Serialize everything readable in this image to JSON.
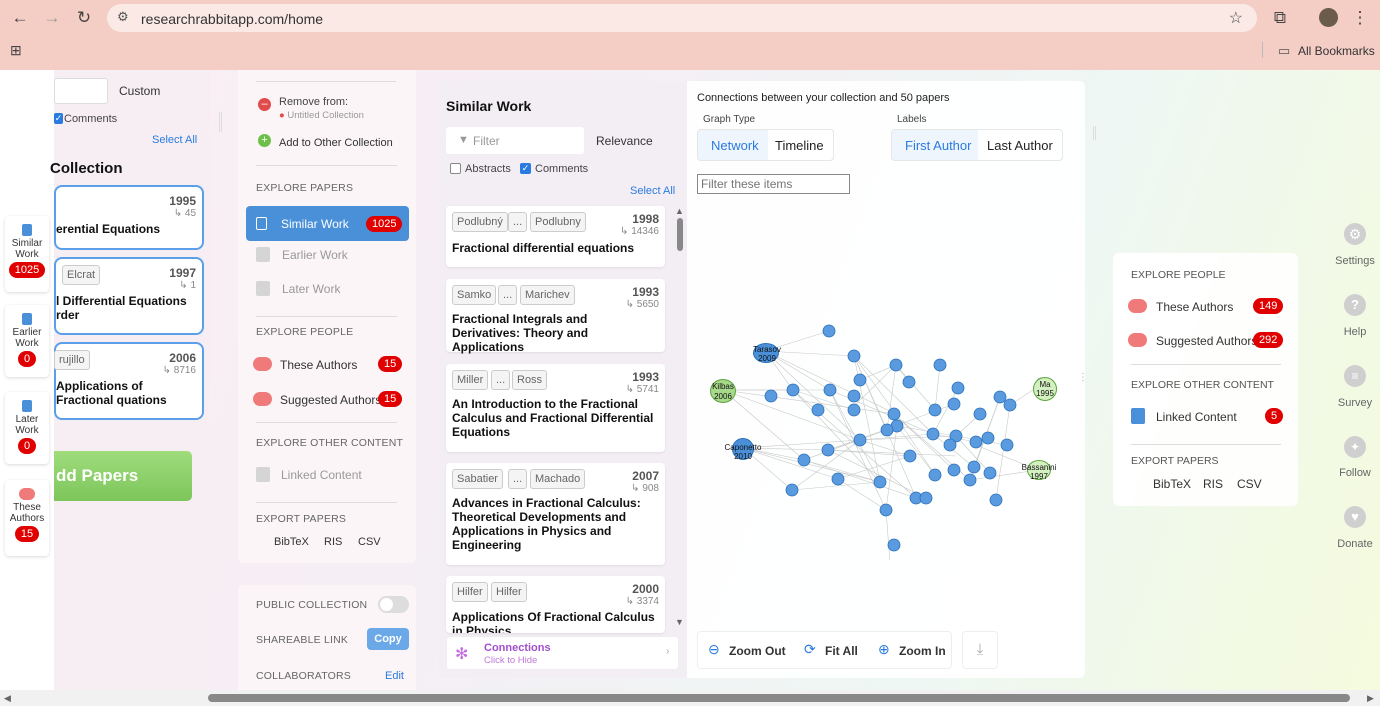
{
  "browser": {
    "url": "researchrabbitapp.com/home",
    "bookmarks_label": "All Bookmarks"
  },
  "left_panel": {
    "custom_label": "Custom",
    "comments_label": "Comments",
    "select_all": "Select All",
    "collection_title": "Collection",
    "papers": [
      {
        "year": "1995",
        "cites": "↳ 45",
        "title": "erential Equations"
      },
      {
        "year": "1997",
        "cites": "↳ 1",
        "author": "Elcrat",
        "title": "l Differential Equations rder"
      },
      {
        "year": "2006",
        "cites": "↳ 8716",
        "author": "rujillo",
        "title": "Applications of Fractional quations"
      }
    ],
    "add_papers": "dd Papers"
  },
  "side_cards": [
    {
      "label": "Similar Work",
      "count": "1025"
    },
    {
      "label": "Earlier Work",
      "count": "0"
    },
    {
      "label": "Later Work",
      "count": "0"
    },
    {
      "label": "These Authors",
      "count": "15"
    }
  ],
  "nav_panel": {
    "remove_from": "Remove from:",
    "untitled_collection": "Untitled Collection",
    "add_to_other": "Add to Other Collection",
    "explore_papers": "EXPLORE PAPERS",
    "similar_work": "Similar Work",
    "similar_count": "1025",
    "earlier_work": "Earlier Work",
    "later_work": "Later Work",
    "explore_people": "EXPLORE PEOPLE",
    "these_authors": "These Authors",
    "these_authors_count": "15",
    "suggested_authors": "Suggested Authors",
    "suggested_count": "15",
    "explore_other": "EXPLORE OTHER CONTENT",
    "linked_content": "Linked Content",
    "export_papers": "EXPORT PAPERS",
    "bibtex": "BibTeX",
    "ris": "RIS",
    "csv": "CSV",
    "public_collection": "PUBLIC COLLECTION",
    "shareable_link": "SHAREABLE LINK",
    "copy": "Copy",
    "collaborators": "COLLABORATORS",
    "edit": "Edit"
  },
  "similar": {
    "title": "Similar Work",
    "filter_placeholder": "Filter",
    "sort": "Relevance",
    "abstracts": "Abstracts",
    "comments": "Comments",
    "select_all": "Select All",
    "papers": [
      {
        "a1": "Podlubný",
        "a2": "Podlubny",
        "year": "1998",
        "cites": "↳ 14346",
        "title": "Fractional differential equations"
      },
      {
        "a1": "Samko",
        "a2": "Marichev",
        "year": "1993",
        "cites": "↳ 5650",
        "title": "Fractional Integrals and Derivatives: Theory and Applications"
      },
      {
        "a1": "Miller",
        "a2": "Ross",
        "year": "1993",
        "cites": "↳ 5741",
        "title": "An Introduction to the Fractional Calculus and Fractional Differential Equations"
      },
      {
        "a1": "Sabatier",
        "a2": "Machado",
        "year": "2007",
        "cites": "↳ 908",
        "title": "Advances in Fractional Calculus: Theoretical Developments and Applications in Physics and Engineering"
      },
      {
        "a1": "Hilfer",
        "a2": "Hilfer",
        "year": "2000",
        "cites": "↳ 3374",
        "title": "Applications Of Fractional Calculus in Physics"
      }
    ],
    "ellipsis": "...",
    "connections": "Connections",
    "click_to_hide": "Click to Hide"
  },
  "graph": {
    "heading": "Connections between your collection and 50 papers",
    "graph_type_label": "Graph Type",
    "network": "Network",
    "timeline": "Timeline",
    "labels_label": "Labels",
    "first_author": "First Author",
    "last_author": "Last Author",
    "filter_placeholder": "Filter these items",
    "named_nodes": [
      {
        "label": "Tarasov 2009"
      },
      {
        "label": "Kilbas 2006"
      },
      {
        "label": "Ma 1995"
      },
      {
        "label": "Caponetto 2010"
      },
      {
        "label": "Bassanini 1997"
      }
    ],
    "zoom_out": "Zoom Out",
    "fit_all": "Fit All",
    "zoom_in": "Zoom In"
  },
  "right_panel": {
    "explore_people": "EXPLORE PEOPLE",
    "these_authors": "These Authors",
    "these_count": "149",
    "suggested_authors": "Suggested Authors",
    "suggested_count": "292",
    "explore_other": "EXPLORE OTHER CONTENT",
    "linked_content": "Linked Content",
    "linked_count": "5",
    "export_papers": "EXPORT PAPERS",
    "bibtex": "BibTeX",
    "ris": "RIS",
    "csv": "CSV"
  },
  "far_right": [
    "Settings",
    "Help",
    "Survey",
    "Follow",
    "Donate"
  ],
  "colors": {
    "accent": "#4a90d9",
    "badge": "#e10000",
    "add_papers": "#8ccf6a"
  }
}
